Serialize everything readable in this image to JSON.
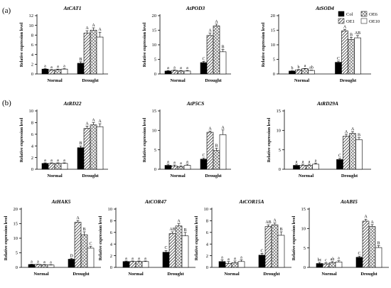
{
  "figure": {
    "panel_labels": [
      "(a)",
      "(b)"
    ],
    "legend": [
      {
        "label": "Col",
        "pattern": "solid-black"
      },
      {
        "label": "OE1",
        "pattern": "diagonal-hatch"
      },
      {
        "label": "OE6",
        "pattern": "cross-hatch"
      },
      {
        "label": "OE10",
        "pattern": "white"
      }
    ]
  },
  "chart_data": [
    {
      "type": "bar",
      "title": "AtCAT1",
      "ylabel": "Relative expression level",
      "ylim": [
        0,
        12
      ],
      "yticks": [
        0,
        2,
        4,
        6,
        8,
        10,
        12
      ],
      "categories": [
        "Normal",
        "Drought"
      ],
      "series": [
        {
          "name": "Col",
          "values": [
            1.0,
            2.2
          ],
          "errors": [
            0.1,
            0.3
          ],
          "letters": [
            "a",
            "B"
          ]
        },
        {
          "name": "OE1",
          "values": [
            0.8,
            8.4
          ],
          "errors": [
            0.1,
            0.5
          ],
          "letters": [
            "a",
            "A"
          ]
        },
        {
          "name": "OE6",
          "values": [
            0.9,
            9.0
          ],
          "errors": [
            0.1,
            0.5
          ],
          "letters": [
            "a",
            "A"
          ]
        },
        {
          "name": "OE10",
          "values": [
            1.0,
            7.6
          ],
          "errors": [
            0.1,
            1.0
          ],
          "letters": [
            "a",
            "A"
          ]
        }
      ]
    },
    {
      "type": "bar",
      "title": "AtPOD3",
      "ylabel": "Relative expression level",
      "ylim": [
        0,
        20
      ],
      "yticks": [
        0,
        5,
        10,
        15,
        20
      ],
      "categories": [
        "Normal",
        "Drought"
      ],
      "series": [
        {
          "name": "Col",
          "values": [
            1.0,
            3.9
          ],
          "errors": [
            0.2,
            0.4
          ],
          "letters": [
            "a",
            "C"
          ]
        },
        {
          "name": "OE1",
          "values": [
            1.2,
            13.2
          ],
          "errors": [
            0.2,
            0.8
          ],
          "letters": [
            "a",
            "A"
          ]
        },
        {
          "name": "OE6",
          "values": [
            1.0,
            16.5
          ],
          "errors": [
            0.2,
            0.6
          ],
          "letters": [
            "a",
            "A"
          ]
        },
        {
          "name": "OE10",
          "values": [
            1.0,
            7.6
          ],
          "errors": [
            0.2,
            0.8
          ],
          "letters": [
            "a",
            "B"
          ]
        }
      ]
    },
    {
      "type": "bar",
      "title": "AtSOD4",
      "ylabel": "Relative expression level",
      "ylim": [
        0,
        20
      ],
      "yticks": [
        0,
        5,
        10,
        15,
        20
      ],
      "categories": [
        "Normal",
        "Drought"
      ],
      "series": [
        {
          "name": "Col",
          "values": [
            1.0,
            4.0
          ],
          "errors": [
            0.1,
            0.4
          ],
          "letters": [
            "b",
            "C"
          ]
        },
        {
          "name": "OE1",
          "values": [
            1.4,
            14.8
          ],
          "errors": [
            0.1,
            0.5
          ],
          "letters": [
            "b",
            "A"
          ]
        },
        {
          "name": "OE6",
          "values": [
            1.8,
            11.8
          ],
          "errors": [
            0.1,
            0.8
          ],
          "letters": [
            "a",
            "B"
          ]
        },
        {
          "name": "OE10",
          "values": [
            1.2,
            12.4
          ],
          "errors": [
            0.1,
            0.8
          ],
          "letters": [
            "ab",
            "AB"
          ]
        }
      ]
    },
    {
      "type": "bar",
      "title": "AtRD22",
      "ylabel": "Relative expression level",
      "ylim": [
        0,
        10
      ],
      "yticks": [
        0,
        2,
        4,
        6,
        8,
        10
      ],
      "categories": [
        "Normal",
        "Drought"
      ],
      "series": [
        {
          "name": "Col",
          "values": [
            1.0,
            3.7
          ],
          "errors": [
            0.1,
            0.3
          ],
          "letters": [
            "a",
            "B"
          ]
        },
        {
          "name": "OE1",
          "values": [
            1.0,
            7.0
          ],
          "errors": [
            0.1,
            0.4
          ],
          "letters": [
            "a",
            "A"
          ]
        },
        {
          "name": "OE6",
          "values": [
            1.0,
            7.6
          ],
          "errors": [
            0.1,
            0.4
          ],
          "letters": [
            "a",
            "A"
          ]
        },
        {
          "name": "OE10",
          "values": [
            1.0,
            7.3
          ],
          "errors": [
            0.1,
            0.5
          ],
          "letters": [
            "a",
            "A"
          ]
        }
      ]
    },
    {
      "type": "bar",
      "title": "AtP5CS",
      "ylabel": "Relative expression level",
      "ylim": [
        0,
        15
      ],
      "yticks": [
        0,
        5,
        10,
        15
      ],
      "categories": [
        "Normal",
        "Drought"
      ],
      "series": [
        {
          "name": "Col",
          "values": [
            1.0,
            2.6
          ],
          "errors": [
            0.3,
            0.3
          ],
          "letters": [
            "a",
            "C"
          ]
        },
        {
          "name": "OE1",
          "values": [
            0.8,
            9.5
          ],
          "errors": [
            0.3,
            0.3
          ],
          "letters": [
            "a",
            "A"
          ]
        },
        {
          "name": "OE6",
          "values": [
            0.6,
            4.8
          ],
          "errors": [
            0.3,
            0.6
          ],
          "letters": [
            "a",
            "B"
          ]
        },
        {
          "name": "OE10",
          "values": [
            1.0,
            8.9
          ],
          "errors": [
            0.3,
            1.2
          ],
          "letters": [
            "a",
            "A"
          ]
        }
      ]
    },
    {
      "type": "bar",
      "title": "AtRD29A",
      "ylabel": "Relative expression level",
      "ylim": [
        0,
        15
      ],
      "yticks": [
        0,
        5,
        10,
        15
      ],
      "categories": [
        "Normal",
        "Drought"
      ],
      "series": [
        {
          "name": "Col",
          "values": [
            1.0,
            2.5
          ],
          "errors": [
            0.3,
            0.3
          ],
          "letters": [
            "a",
            "C"
          ]
        },
        {
          "name": "OE1",
          "values": [
            1.0,
            8.5
          ],
          "errors": [
            0.3,
            0.5
          ],
          "letters": [
            "a",
            "A"
          ]
        },
        {
          "name": "OE6",
          "values": [
            1.0,
            9.2
          ],
          "errors": [
            0.3,
            0.5
          ],
          "letters": [
            "a",
            "A"
          ]
        },
        {
          "name": "OE10",
          "values": [
            1.3,
            7.6
          ],
          "errors": [
            0.3,
            0.5
          ],
          "letters": [
            "a",
            "B"
          ]
        }
      ]
    },
    {
      "type": "bar",
      "title": "AtHAK5",
      "ylabel": "Relative expression level",
      "ylim": [
        0,
        20
      ],
      "yticks": [
        0,
        5,
        10,
        15,
        20
      ],
      "categories": [
        "Normal",
        "Drought"
      ],
      "series": [
        {
          "name": "Col",
          "values": [
            1.0,
            2.8
          ],
          "errors": [
            0.1,
            0.3
          ],
          "letters": [
            "a",
            "D"
          ]
        },
        {
          "name": "OE1",
          "values": [
            1.0,
            15.5
          ],
          "errors": [
            0.1,
            0.6
          ],
          "letters": [
            "a",
            "A"
          ]
        },
        {
          "name": "OE6",
          "values": [
            0.9,
            11.2
          ],
          "errors": [
            0.1,
            1.0
          ],
          "letters": [
            "a",
            "B"
          ]
        },
        {
          "name": "OE10",
          "values": [
            0.8,
            6.6
          ],
          "errors": [
            0.1,
            0.6
          ],
          "letters": [
            "a",
            "C"
          ]
        }
      ]
    },
    {
      "type": "bar",
      "title": "AtCOR47",
      "ylabel": "Relative expression level",
      "ylim": [
        0,
        10
      ],
      "yticks": [
        0,
        2,
        4,
        6,
        8,
        10
      ],
      "categories": [
        "Normal",
        "Drought"
      ],
      "series": [
        {
          "name": "Col",
          "values": [
            1.0,
            2.6
          ],
          "errors": [
            0.1,
            0.3
          ],
          "letters": [
            "a",
            "C"
          ]
        },
        {
          "name": "OE1",
          "values": [
            1.0,
            5.8
          ],
          "errors": [
            0.1,
            0.3
          ],
          "letters": [
            "a",
            "AB"
          ]
        },
        {
          "name": "OE6",
          "values": [
            1.0,
            7.1
          ],
          "errors": [
            0.1,
            0.4
          ],
          "letters": [
            "a",
            "A"
          ]
        },
        {
          "name": "OE10",
          "values": [
            1.0,
            5.4
          ],
          "errors": [
            0.1,
            0.6
          ],
          "letters": [
            "a",
            "B"
          ]
        }
      ]
    },
    {
      "type": "bar",
      "title": "AtCOR15A",
      "ylabel": "Relative expression level",
      "ylim": [
        0,
        10
      ],
      "yticks": [
        0,
        2,
        4,
        6,
        8,
        10
      ],
      "categories": [
        "Normal",
        "Drought"
      ],
      "series": [
        {
          "name": "Col",
          "values": [
            1.0,
            2.1
          ],
          "errors": [
            0.3,
            0.3
          ],
          "letters": [
            "a",
            "C"
          ]
        },
        {
          "name": "OE1",
          "values": [
            0.7,
            7.0
          ],
          "errors": [
            0.3,
            0.3
          ],
          "letters": [
            "a",
            "AB"
          ]
        },
        {
          "name": "OE6",
          "values": [
            0.8,
            7.3
          ],
          "errors": [
            0.3,
            0.3
          ],
          "letters": [
            "a",
            "A"
          ]
        },
        {
          "name": "OE10",
          "values": [
            1.0,
            5.5
          ],
          "errors": [
            0.3,
            0.6
          ],
          "letters": [
            "a",
            "B"
          ]
        }
      ]
    },
    {
      "type": "bar",
      "title": "AtABI5",
      "ylabel": "Relative expression level",
      "ylim": [
        0,
        15
      ],
      "yticks": [
        0,
        5,
        10,
        15
      ],
      "categories": [
        "Normal",
        "Drought"
      ],
      "series": [
        {
          "name": "Col",
          "values": [
            1.0,
            2.6
          ],
          "errors": [
            0.3,
            0.3
          ],
          "letters": [
            "bc",
            "C"
          ]
        },
        {
          "name": "OE1",
          "values": [
            0.9,
            11.9
          ],
          "errors": [
            0.3,
            0.5
          ],
          "letters": [
            "c",
            "A"
          ]
        },
        {
          "name": "OE6",
          "values": [
            1.2,
            10.5
          ],
          "errors": [
            0.3,
            0.5
          ],
          "letters": [
            "ab",
            "A"
          ]
        },
        {
          "name": "OE10",
          "values": [
            1.4,
            5.1
          ],
          "errors": [
            0.3,
            0.5
          ],
          "letters": [
            "a",
            "B"
          ]
        }
      ]
    }
  ]
}
